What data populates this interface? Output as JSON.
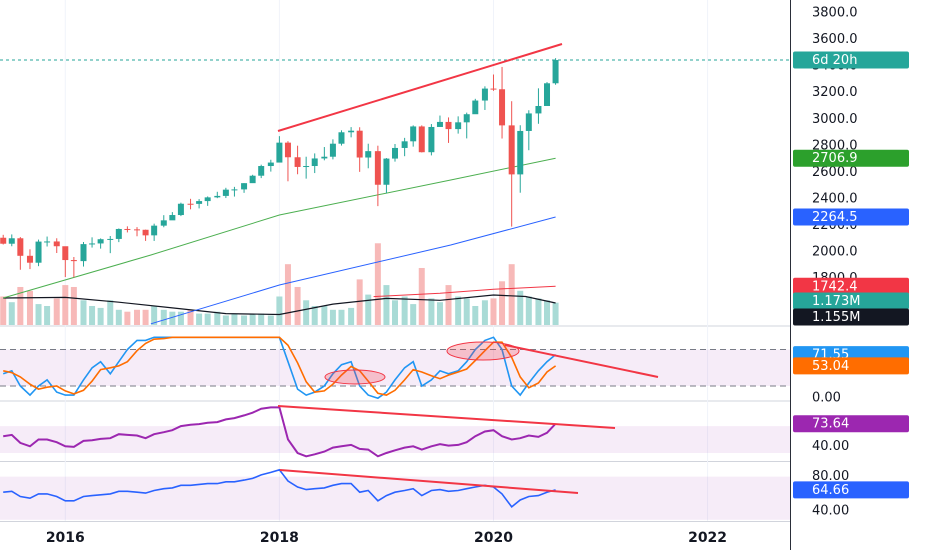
{
  "chart_data": {
    "type": "candlestick",
    "countdown": "6d 20h",
    "up_color": "#26a69a",
    "down_color": "#ef5350",
    "xlim": [
      2015.39,
      2022.77
    ],
    "xticks": [
      2016,
      2018,
      2020,
      2022
    ],
    "grid": true,
    "ylim": [
      1451,
      3898
    ],
    "yticks": [
      {
        "value": 1800,
        "label": "1800.0"
      },
      {
        "value": 2000,
        "label": "2000.0"
      },
      {
        "value": 2200,
        "label": "2200.0"
      },
      {
        "value": 2400,
        "label": "2400.0"
      },
      {
        "value": 2600,
        "label": "2600.0"
      },
      {
        "value": 2800,
        "label": "2800.0"
      },
      {
        "value": 3000,
        "label": "3000.0"
      },
      {
        "value": 3200,
        "label": "3200.0"
      },
      {
        "value": 3400,
        "label": "3400.0"
      },
      {
        "value": 3600,
        "label": "3600.0"
      },
      {
        "value": 3800,
        "label": "3800.0"
      }
    ],
    "x": [
      2015.42,
      2015.5,
      2015.58,
      2015.67,
      2015.75,
      2015.83,
      2015.92,
      2016.0,
      2016.08,
      2016.17,
      2016.25,
      2016.33,
      2016.42,
      2016.5,
      2016.58,
      2016.67,
      2016.75,
      2016.83,
      2016.92,
      2017.0,
      2017.08,
      2017.17,
      2017.25,
      2017.33,
      2017.42,
      2017.5,
      2017.58,
      2017.67,
      2017.75,
      2017.83,
      2017.92,
      2018.0,
      2018.08,
      2018.17,
      2018.25,
      2018.33,
      2018.42,
      2018.5,
      2018.58,
      2018.67,
      2018.75,
      2018.83,
      2018.92,
      2019.0,
      2019.08,
      2019.17,
      2019.25,
      2019.33,
      2019.42,
      2019.5,
      2019.58,
      2019.67,
      2019.75,
      2019.83,
      2019.92,
      2020.0,
      2020.08,
      2020.17,
      2020.25,
      2020.33,
      2020.42,
      2020.5,
      2020.58
    ],
    "open": [
      2108,
      2063,
      2104,
      1972,
      1920,
      2079,
      2080,
      2044,
      1940,
      1932,
      2060,
      2065,
      2097,
      2099,
      2174,
      2171,
      2168,
      2126,
      2199,
      2239,
      2279,
      2364,
      2363,
      2384,
      2412,
      2423,
      2470,
      2472,
      2519,
      2575,
      2648,
      2674,
      2824,
      2714,
      2641,
      2648,
      2705,
      2718,
      2816,
      2902,
      2914,
      2712,
      2760,
      2507,
      2704,
      2784,
      2834,
      2946,
      2752,
      2942,
      2980,
      2926,
      2977,
      3038,
      3141,
      3231,
      3226,
      2954,
      2585,
      2912,
      3044,
      3100,
      3271
    ],
    "high": [
      2130,
      2133,
      2113,
      2021,
      2094,
      2117,
      2104,
      2038,
      1963,
      2076,
      2111,
      2103,
      2121,
      2178,
      2194,
      2188,
      2169,
      2214,
      2278,
      2301,
      2372,
      2401,
      2399,
      2419,
      2454,
      2484,
      2491,
      2519,
      2582,
      2658,
      2695,
      2873,
      2835,
      2801,
      2718,
      2743,
      2791,
      2849,
      2917,
      2941,
      2940,
      2816,
      2801,
      2708,
      2814,
      2860,
      2954,
      2954,
      2964,
      3028,
      3014,
      3022,
      3050,
      3154,
      3248,
      3337,
      3394,
      3136,
      2955,
      3068,
      3233,
      3280,
      3460
    ],
    "low": [
      2057,
      2044,
      1867,
      1872,
      1894,
      2042,
      1993,
      1812,
      1810,
      1891,
      2034,
      2026,
      1992,
      2075,
      2148,
      2119,
      2084,
      2084,
      2187,
      2245,
      2271,
      2322,
      2329,
      2348,
      2406,
      2407,
      2418,
      2446,
      2520,
      2557,
      2606,
      2680,
      2533,
      2586,
      2553,
      2595,
      2691,
      2698,
      2802,
      2864,
      2604,
      2631,
      2346,
      2444,
      2681,
      2722,
      2794,
      2750,
      2728,
      2944,
      2822,
      2892,
      2856,
      3050,
      3070,
      3214,
      2855,
      2192,
      2447,
      2767,
      2966,
      3101,
      3260
    ],
    "close": [
      2063,
      2104,
      1972,
      1920,
      2079,
      2080,
      2044,
      1940,
      1932,
      2060,
      2065,
      2097,
      2099,
      2174,
      2171,
      2168,
      2126,
      2199,
      2239,
      2279,
      2364,
      2363,
      2384,
      2412,
      2423,
      2470,
      2472,
      2519,
      2575,
      2648,
      2674,
      2824,
      2714,
      2641,
      2648,
      2705,
      2718,
      2816,
      2902,
      2914,
      2712,
      2760,
      2507,
      2704,
      2784,
      2834,
      2946,
      2752,
      2942,
      2980,
      2926,
      2977,
      3038,
      3141,
      3231,
      3226,
      2954,
      2585,
      2912,
      3044,
      3100,
      3271,
      3446
    ],
    "overlays": [
      {
        "color": "#4caf50",
        "x": [
          2015.42,
          2016.8,
          2018.0,
          2019.6,
          2020.58
        ],
        "values": [
          1654,
          1978,
          2279,
          2543,
          2706.9
        ],
        "tag_color": "#2ca02c"
      },
      {
        "color": "#2962ff",
        "x": [
          2016.8,
          2018.0,
          2019.6,
          2020.58
        ],
        "values": [
          1460,
          1752,
          2053,
          2264.5
        ],
        "tag_color": "#2962ff"
      },
      {
        "color": "#f23645",
        "x": [
          2018.88,
          2019.5,
          2020.0,
          2020.58
        ],
        "values": [
          1665,
          1690,
          1720,
          1742.4
        ],
        "tag_color": "#f23645"
      }
    ],
    "volume": {
      "ylim": [
        0,
        17.1
      ],
      "up_color": "#a9dbd6",
      "down_color": "#f7b9b8",
      "tag_color": "#26a69a",
      "values": [
        1.5,
        1.2,
        2.0,
        1.8,
        1.1,
        1.0,
        1.4,
        2.1,
        2.0,
        1.3,
        1.0,
        0.9,
        1.3,
        0.8,
        0.7,
        0.8,
        0.8,
        1.0,
        0.8,
        0.7,
        0.7,
        0.8,
        0.6,
        0.6,
        0.7,
        0.5,
        0.6,
        0.5,
        0.6,
        0.6,
        0.5,
        1.5,
        3.2,
        2.0,
        1.3,
        1.0,
        1.0,
        0.8,
        0.8,
        0.9,
        2.4,
        1.6,
        4.3,
        2.1,
        1.3,
        1.5,
        1.1,
        3.0,
        1.4,
        1.2,
        2.1,
        1.5,
        1.4,
        1.0,
        1.3,
        1.4,
        2.3,
        3.2,
        1.8,
        1.5,
        1.4,
        1.3,
        1.173
      ],
      "value_label": "1.173M",
      "average": {
        "color": "#131722",
        "x": [
          2015.42,
          2016.0,
          2016.5,
          2017.0,
          2017.5,
          2018.0,
          2018.5,
          2019.0,
          2019.5,
          2020.0,
          2020.3,
          2020.58
        ],
        "values": [
          1.42,
          1.45,
          1.2,
          0.9,
          0.6,
          0.55,
          1.1,
          1.4,
          1.3,
          1.58,
          1.5,
          1.155
        ],
        "value_label": "1.155M"
      }
    },
    "panes": [
      {
        "type": "line",
        "ylim": [
          -3,
          117
        ],
        "yticks": [
          {
            "value": 0,
            "label": "0.00"
          }
        ],
        "band": [
          20,
          80
        ],
        "band_style": "dashed",
        "band_color": "#9c27b0",
        "series": [
          {
            "color": "#2196f3",
            "values": [
              40,
              45,
              20,
              5,
              20,
              30,
              10,
              5,
              5,
              30,
              50,
              60,
              40,
              60,
              80,
              95,
              95,
              100,
              100,
              100,
              100,
              100,
              100,
              100,
              100,
              100,
              100,
              100,
              100,
              100,
              100,
              100,
              60,
              15,
              5,
              10,
              20,
              40,
              55,
              60,
              20,
              5,
              0,
              10,
              30,
              50,
              60,
              20,
              30,
              45,
              40,
              45,
              60,
              80,
              95,
              100,
              80,
              20,
              5,
              25,
              45,
              60,
              71.55
            ]
          },
          {
            "color": "#ff6d00",
            "values": [
              45,
              42,
              35,
              23,
              15,
              18,
              20,
              12,
              7,
              13,
              28,
              47,
              50,
              53,
              60,
              78,
              90,
              97,
              98,
              100,
              100,
              100,
              100,
              100,
              100,
              100,
              100,
              100,
              100,
              100,
              100,
              100,
              87,
              58,
              27,
              10,
              12,
              23,
              38,
              52,
              45,
              28,
              8,
              5,
              13,
              30,
              47,
              43,
              37,
              32,
              38,
              43,
              48,
              62,
              78,
              92,
              92,
              67,
              35,
              17,
              25,
              43,
              53.04
            ]
          }
        ]
      },
      {
        "type": "line",
        "ylim": [
          18,
          106
        ],
        "yticks": [
          {
            "value": 40,
            "label": "40.00"
          }
        ],
        "band": [
          30,
          70
        ],
        "band_style": "solid",
        "band_color": "#9c27b0",
        "series": [
          {
            "color": "#9c27b0",
            "values": [
              55,
              57,
              45,
              40,
              50,
              50,
              46,
              40,
              39,
              48,
              49,
              51,
              52,
              58,
              57,
              56,
              52,
              58,
              61,
              64,
              70,
              72,
              73,
              75,
              76,
              80,
              82,
              86,
              90,
              96,
              98,
              98,
              50,
              30,
              25,
              28,
              32,
              38,
              40,
              42,
              36,
              35,
              25,
              30,
              34,
              38,
              40,
              35,
              40,
              43,
              41,
              42,
              46,
              55,
              62,
              64,
              55,
              50,
              52,
              56,
              54,
              60,
              73.64
            ]
          }
        ]
      },
      {
        "type": "line",
        "ylim": [
          28.6,
          97
        ],
        "yticks": [
          {
            "value": 80,
            "label": "80.00"
          },
          {
            "value": 40,
            "label": "40.00"
          }
        ],
        "band": [
          30,
          80
        ],
        "band_style": "solid",
        "band_color": "#9c27b0",
        "series": [
          {
            "color": "#2962ff",
            "values": [
              62,
              63,
              57,
              55,
              60,
              60,
              57,
              52,
              52,
              57,
              58,
              59,
              60,
              63,
              63,
              62,
              61,
              64,
              66,
              67,
              70,
              70,
              71,
              72,
              72,
              74,
              74,
              76,
              78,
              82,
              85,
              88,
              75,
              68,
              65,
              66,
              67,
              70,
              72,
              72,
              62,
              64,
              52,
              58,
              62,
              64,
              66,
              58,
              64,
              65,
              63,
              64,
              66,
              68,
              70,
              68,
              60,
              45,
              53,
              57,
              58,
              62,
              64.66
            ]
          }
        ]
      }
    ]
  }
}
